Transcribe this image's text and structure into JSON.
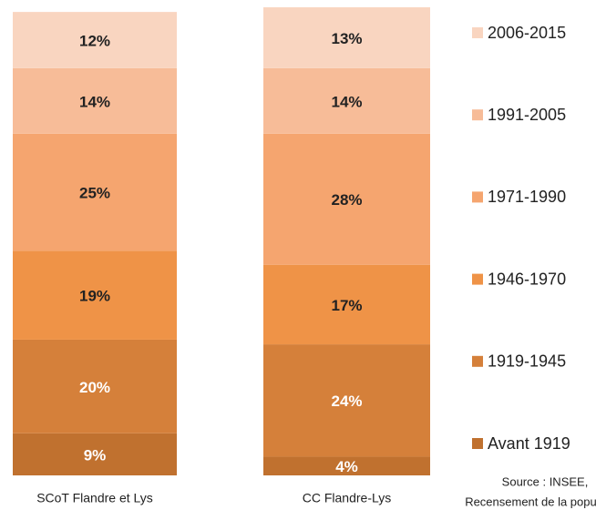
{
  "chart_data": {
    "type": "stacked_bar",
    "categories": [
      "SCoT Flandre et Lys",
      "CC Flandre-Lys"
    ],
    "ylim": [
      0,
      100
    ],
    "series": [
      {
        "name": "Avant 1919",
        "color": "#c0712f",
        "values": [
          9,
          4
        ],
        "value_labels": [
          "9%",
          "4%"
        ]
      },
      {
        "name": "1919-1945",
        "color": "#d5803a",
        "values": [
          20,
          24
        ],
        "value_labels": [
          "20%",
          "24%"
        ]
      },
      {
        "name": "1946-1970",
        "color": "#ef9347",
        "values": [
          19,
          17
        ],
        "value_labels": [
          "19%",
          "17%"
        ]
      },
      {
        "name": "1971-1990",
        "color": "#f5a56f",
        "values": [
          25,
          28
        ],
        "value_labels": [
          "25%",
          "28%"
        ]
      },
      {
        "name": "1991-2005",
        "color": "#f7bc98",
        "values": [
          14,
          14
        ],
        "value_labels": [
          "14%",
          "14%"
        ]
      },
      {
        "name": "2006-2015",
        "color": "#f9d5c0",
        "values": [
          12,
          13
        ],
        "value_labels": [
          "12%",
          "13%"
        ]
      }
    ],
    "source": [
      "Source : INSEE,",
      "Recensement de la population"
    ]
  }
}
